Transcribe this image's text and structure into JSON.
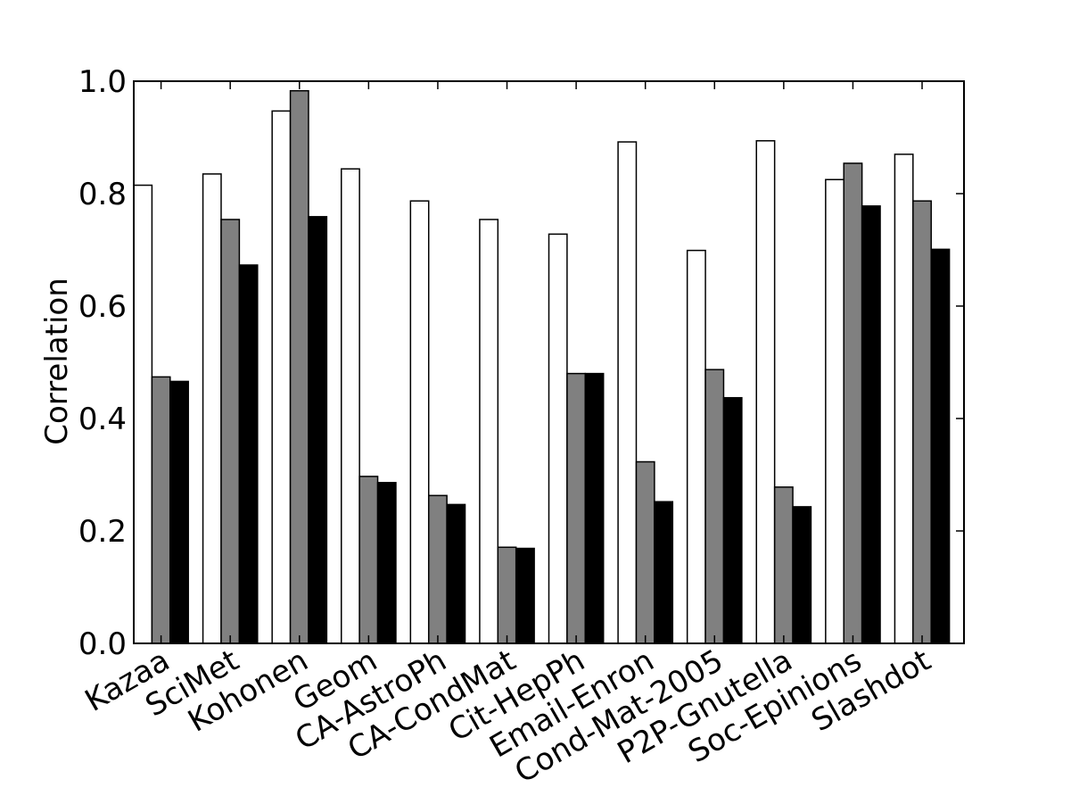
{
  "chart_data": {
    "type": "bar",
    "title": "",
    "xlabel": "",
    "ylabel": "Correlation",
    "ylim": [
      0.0,
      1.0
    ],
    "yticks": [
      "0.0",
      "0.2",
      "0.4",
      "0.6",
      "0.8",
      "1.0"
    ],
    "grid": false,
    "legend": "none",
    "categories": [
      "Kazaa",
      "SciMet",
      "Kohonen",
      "Geom",
      "CA-AstroPh",
      "CA-CondMat",
      "Cit-HepPh",
      "Email-Enron",
      "Cond-Mat-2005",
      "P2P-Gnutella",
      "Soc-Epinions",
      "Slashdot"
    ],
    "series": [
      {
        "color": "#ffffff",
        "values": [
          0.815,
          0.835,
          0.947,
          0.844,
          0.787,
          0.754,
          0.728,
          0.892,
          0.699,
          0.894,
          0.825,
          0.87
        ]
      },
      {
        "color": "#808080",
        "values": [
          0.474,
          0.754,
          0.983,
          0.297,
          0.263,
          0.171,
          0.48,
          0.323,
          0.487,
          0.278,
          0.854,
          0.787
        ]
      },
      {
        "color": "#000000",
        "values": [
          0.466,
          0.673,
          0.759,
          0.286,
          0.247,
          0.169,
          0.48,
          0.252,
          0.437,
          0.243,
          0.778,
          0.701
        ]
      }
    ]
  }
}
